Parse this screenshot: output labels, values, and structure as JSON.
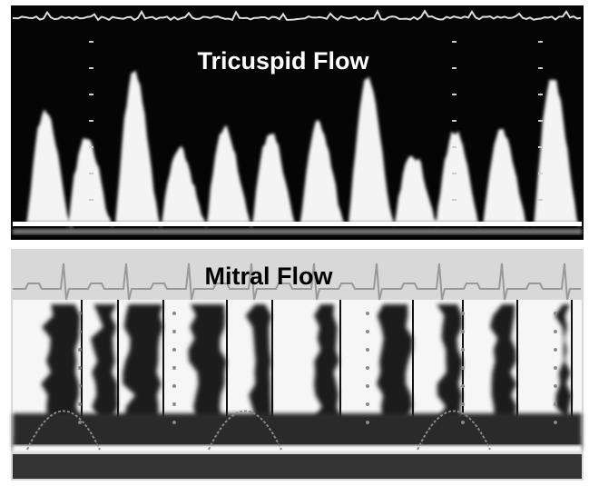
{
  "panels": [
    {
      "label": "Tricuspid Flow"
    },
    {
      "label": "Mitral Flow"
    }
  ]
}
